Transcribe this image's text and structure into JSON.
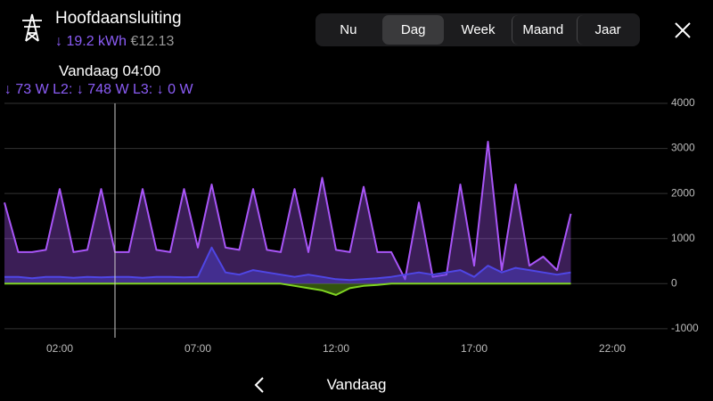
{
  "header": {
    "title": "Hoofdaansluiting",
    "energy": "↓ 19.2 kWh",
    "cost": "€12.13"
  },
  "tabs": {
    "items": [
      "Nu",
      "Dag",
      "Week",
      "Maand",
      "Jaar"
    ],
    "selected": 1
  },
  "cursor": {
    "label": "Vandaag 04:00",
    "x": 4
  },
  "readout": [
    {
      "label": ":",
      "value": "↓ 73 W"
    },
    {
      "label": "L2:",
      "value": "↓ 748 W"
    },
    {
      "label": "L3:",
      "value": "↓ 0 W"
    }
  ],
  "chart_data": {
    "type": "area",
    "x": [
      0,
      0.5,
      1,
      1.5,
      2,
      2.5,
      3,
      3.5,
      4,
      4.5,
      5,
      5.5,
      6,
      6.5,
      7,
      7.5,
      8,
      8.5,
      9,
      9.5,
      10,
      10.5,
      11,
      11.5,
      12,
      12.5,
      13,
      13.5,
      14,
      14.5,
      15,
      15.5,
      16,
      16.5,
      17,
      17.5,
      18,
      18.5,
      19,
      19.5,
      20,
      20.5
    ],
    "series": [
      {
        "color": "#a855f7",
        "values": [
          1800,
          700,
          700,
          750,
          2100,
          700,
          750,
          2100,
          700,
          700,
          2100,
          750,
          700,
          2100,
          800,
          2200,
          800,
          750,
          2100,
          750,
          700,
          2100,
          700,
          2350,
          750,
          700,
          2150,
          700,
          700,
          100,
          1800,
          150,
          200,
          2200,
          400,
          3150,
          300,
          2200,
          400,
          600,
          300,
          1550
        ]
      },
      {
        "color": "#4f46e5",
        "values": [
          150,
          150,
          120,
          150,
          150,
          130,
          150,
          140,
          150,
          150,
          130,
          150,
          150,
          140,
          150,
          800,
          250,
          200,
          300,
          250,
          200,
          150,
          200,
          150,
          100,
          80,
          100,
          120,
          150,
          200,
          250,
          200,
          250,
          300,
          150,
          400,
          250,
          350,
          300,
          250,
          200,
          250
        ]
      },
      {
        "color": "#7ed321",
        "values": [
          0,
          0,
          0,
          0,
          0,
          0,
          0,
          0,
          0,
          0,
          0,
          0,
          0,
          0,
          0,
          0,
          0,
          0,
          0,
          0,
          0,
          -50,
          -100,
          -150,
          -250,
          -100,
          -50,
          -30,
          0,
          0,
          0,
          0,
          0,
          0,
          0,
          0,
          0,
          0,
          0,
          0,
          0,
          0
        ]
      }
    ],
    "xlim": [
      0,
      24
    ],
    "xticks": [
      {
        "value": 2,
        "label": "02:00"
      },
      {
        "value": 7,
        "label": "07:00"
      },
      {
        "value": 12,
        "label": "12:00"
      },
      {
        "value": 17,
        "label": "17:00"
      },
      {
        "value": 22,
        "label": "22:00"
      }
    ],
    "ylim": [
      -1200,
      4000
    ],
    "yticks": [
      -1000,
      0,
      1000,
      2000,
      3000,
      4000
    ],
    "grid": true
  },
  "footer": {
    "label": "Vandaag"
  }
}
